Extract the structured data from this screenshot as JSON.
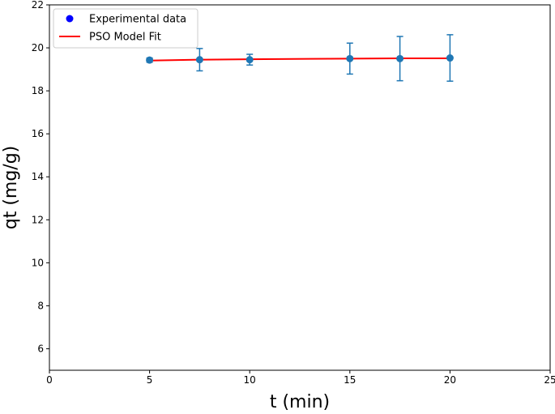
{
  "chart_data": {
    "type": "scatter",
    "title": "",
    "xlabel": "t (min)",
    "ylabel": "qt (mg/g)",
    "xlim": [
      0,
      25
    ],
    "ylim": [
      5,
      22
    ],
    "xticks": [
      0,
      5,
      10,
      15,
      20,
      25
    ],
    "yticks": [
      6,
      8,
      10,
      12,
      14,
      16,
      18,
      20,
      22
    ],
    "grid": false,
    "legend_position": "upper-left",
    "series": [
      {
        "name": "Experimental data",
        "kind": "scatter-errorbar",
        "legend_color": "#0000ff",
        "color": "#1f77b4",
        "x": [
          5,
          7.5,
          10,
          15,
          17.5,
          20
        ],
        "y": [
          19.43,
          19.45,
          19.45,
          19.5,
          19.5,
          19.53
        ],
        "yerr": [
          0.1,
          0.52,
          0.25,
          0.72,
          1.03,
          1.08
        ]
      },
      {
        "name": "PSO Model Fit",
        "kind": "line",
        "color": "#ff0000",
        "x": [
          5,
          7.5,
          10,
          15,
          17.5,
          20
        ],
        "y": [
          19.41,
          19.45,
          19.47,
          19.5,
          19.51,
          19.51
        ]
      }
    ]
  }
}
